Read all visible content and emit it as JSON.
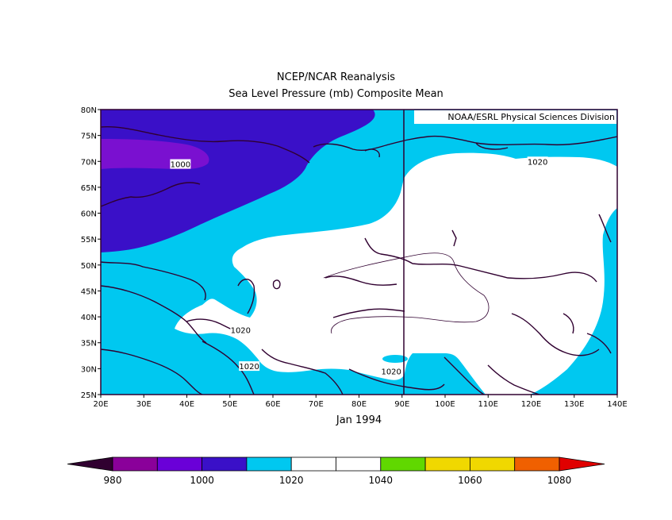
{
  "title": "NCEP/NCAR Reanalysis",
  "subtitle": "Sea Level Pressure (mb) Composite Mean",
  "credit": "NOAA/ESRL Physical Sciences Division",
  "date_label": "Jan 1994",
  "map": {
    "lon_range": [
      20,
      140
    ],
    "lat_range": [
      25,
      80
    ],
    "lon_ticks": [
      "20E",
      "30E",
      "40E",
      "50E",
      "60E",
      "70E",
      "80E",
      "90E",
      "100E",
      "110E",
      "120E",
      "130E",
      "140E"
    ],
    "lat_ticks": [
      "25N",
      "30N",
      "35N",
      "40N",
      "45N",
      "50N",
      "55N",
      "60N",
      "65N",
      "70N",
      "75N",
      "80N"
    ],
    "contour_labels": [
      {
        "text": "1000",
        "lon": 38.5,
        "lat": 69.5
      },
      {
        "text": "1020",
        "lon": 121.5,
        "lat": 70.0
      },
      {
        "text": "1020",
        "lon": 52.5,
        "lat": 37.5
      },
      {
        "text": "1020",
        "lon": 54.5,
        "lat": 30.5
      },
      {
        "text": "1020",
        "lon": 87.5,
        "lat": 29.5
      }
    ]
  },
  "colorbar": {
    "labels": [
      "980",
      "1000",
      "1020",
      "1040",
      "1060",
      "1080"
    ],
    "colors": [
      "#300030",
      "#8a009a",
      "#6a00d8",
      "#3a10c8",
      "#00c8f0",
      "#ffffff",
      "#ffffff",
      "#60d800",
      "#f0d800",
      "#f0d800",
      "#f06000",
      "#e00000"
    ]
  },
  "colors": {
    "level_990": "#7a10d0",
    "level_1000": "#3a10c8",
    "level_1010": "#00c8f0",
    "level_1020": "#ffffff",
    "coast": "#300030"
  }
}
